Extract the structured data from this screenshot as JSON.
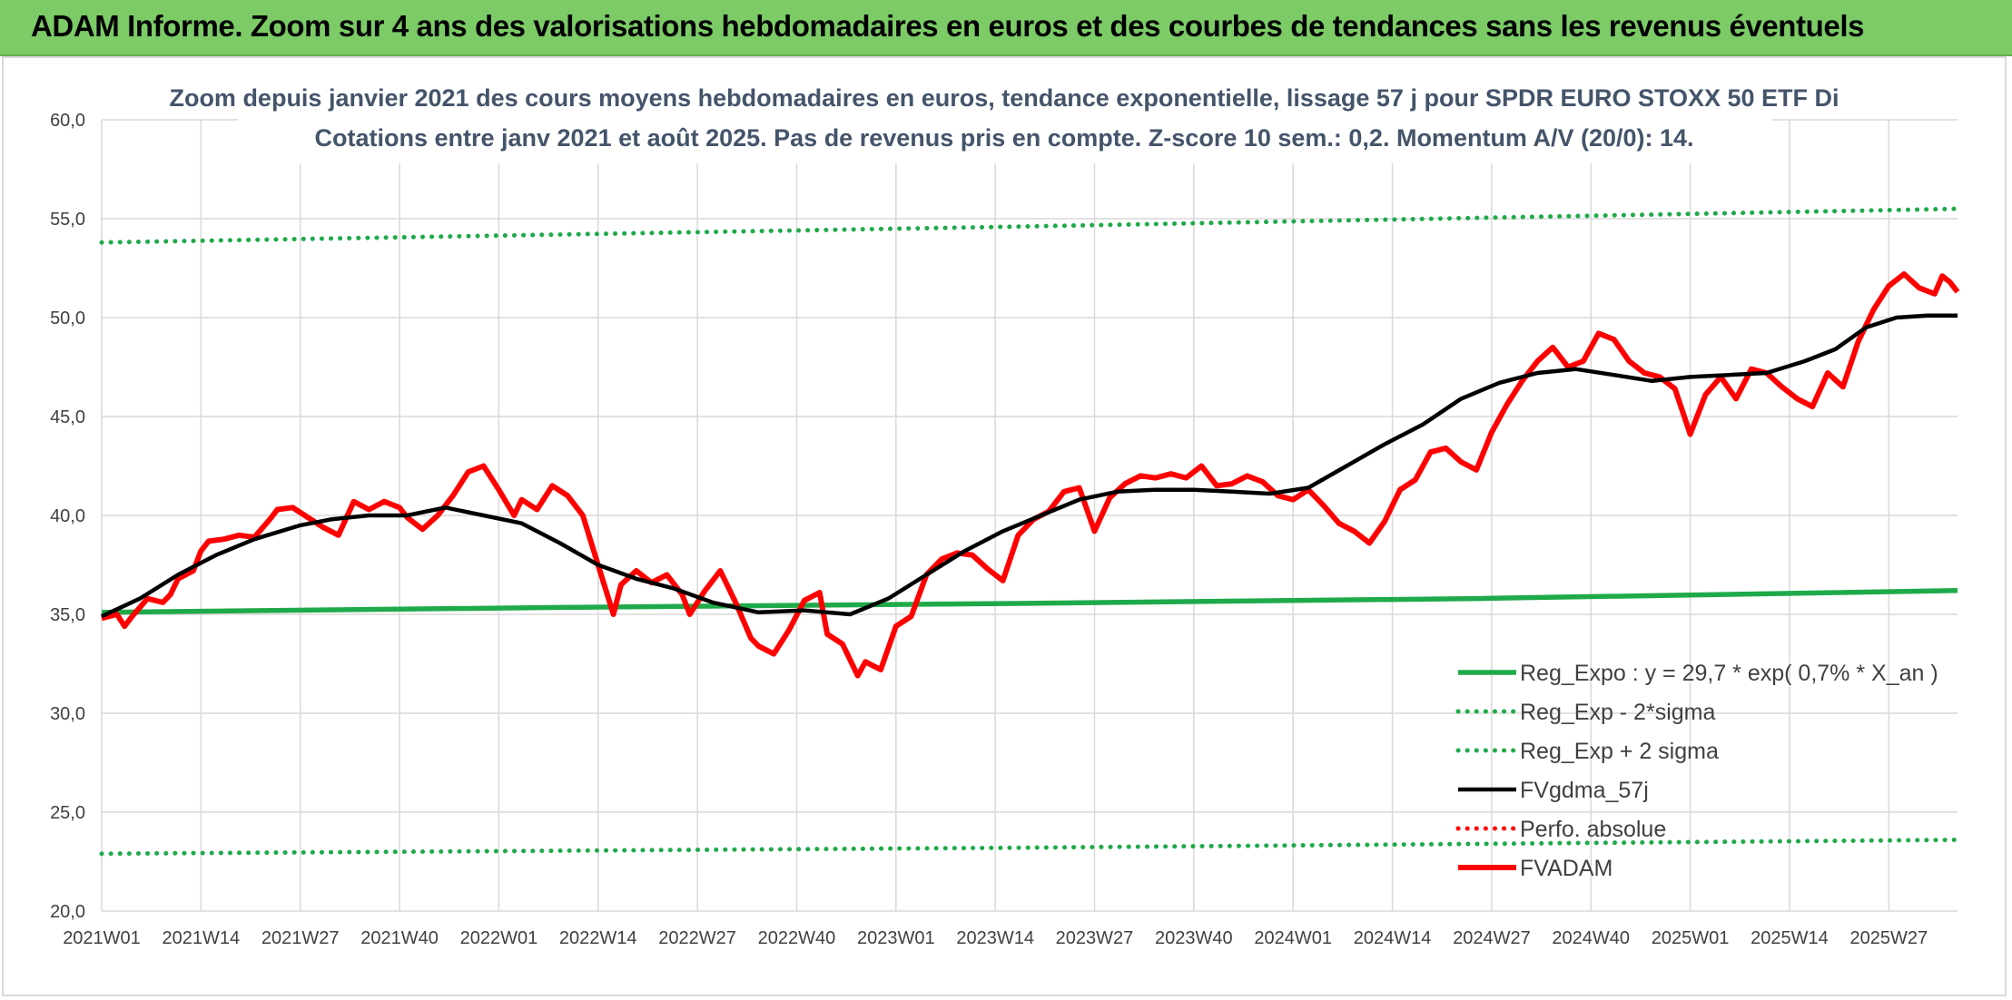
{
  "banner": {
    "title": "ADAM Informe. Zoom sur 4 ans des valorisations hebdomadaires en euros et des courbes de tendances sans les revenus éventuels"
  },
  "colors": {
    "banner_bg": "#7ccb67",
    "green": "#1faa4a",
    "red": "#ff0000",
    "black": "#000000",
    "subtitle": "#44546a",
    "grid": "#d9d9d9"
  },
  "chart_data": {
    "type": "line",
    "title_lines": [
      "Zoom depuis janvier 2021 des cours moyens hebdomadaires en euros, tendance exponentielle, lissage 57 j pour SPDR EURO STOXX 50 ETF Di",
      "Cotations entre janv 2021 et août 2025. Pas de revenus pris en compte. Z-score 10 sem.: 0,2. Momentum A/V (20/0): 14."
    ],
    "xlabel": "",
    "ylabel": "",
    "ylim": [
      20,
      60
    ],
    "yticks": [
      "20,0",
      "25,0",
      "30,0",
      "35,0",
      "40,0",
      "45,0",
      "50,0",
      "55,0",
      "60,0"
    ],
    "x_categories": [
      "2021W01",
      "2021W14",
      "2021W27",
      "2021W40",
      "2022W01",
      "2022W14",
      "2022W27",
      "2022W40",
      "2023W01",
      "2023W14",
      "2023W27",
      "2023W40",
      "2024W01",
      "2024W14",
      "2024W27",
      "2024W40",
      "2025W01",
      "2025W14",
      "2025W27"
    ],
    "grid": true,
    "legend_position": "bottom-right",
    "x_count": 244,
    "series": [
      {
        "name": "Reg_Expo : y = 29,7 * exp( 0,7% *  X_an )",
        "style": "solid-thick",
        "color": "#1faa4a",
        "x": [
          0,
          60,
          120,
          180,
          243
        ],
        "values": [
          35.1,
          35.35,
          35.55,
          35.8,
          36.2
        ]
      },
      {
        "name": "Reg_Exp - 2*sigma",
        "style": "dotted",
        "color": "#1faa4a",
        "x": [
          0,
          120,
          243
        ],
        "values": [
          22.9,
          23.2,
          23.6
        ]
      },
      {
        "name": "Reg_Exp + 2 sigma",
        "style": "dotted",
        "color": "#1faa4a",
        "x": [
          0,
          120,
          243
        ],
        "values": [
          53.8,
          54.6,
          55.5
        ]
      },
      {
        "name": "FVgdma_57j",
        "style": "solid",
        "color": "#000000",
        "x": [
          0,
          5,
          10,
          15,
          20,
          26,
          30,
          35,
          40,
          45,
          50,
          55,
          60,
          65,
          70,
          75,
          80,
          86,
          92,
          98,
          103,
          108,
          113,
          118,
          123,
          128,
          133,
          138,
          143,
          148,
          153,
          158,
          163,
          168,
          173,
          178,
          183,
          188,
          193,
          198,
          203,
          208,
          213,
          218,
          223,
          227,
          231,
          235,
          239,
          243
        ],
        "values": [
          34.9,
          35.8,
          37.0,
          38.0,
          38.8,
          39.5,
          39.8,
          40.0,
          40.0,
          40.4,
          40.0,
          39.6,
          38.6,
          37.5,
          36.8,
          36.3,
          35.6,
          35.1,
          35.2,
          35.0,
          35.8,
          37.0,
          38.2,
          39.2,
          40.0,
          40.8,
          41.2,
          41.3,
          41.3,
          41.2,
          41.1,
          41.4,
          42.5,
          43.6,
          44.6,
          45.9,
          46.7,
          47.2,
          47.4,
          47.1,
          46.8,
          47.0,
          47.1,
          47.2,
          47.8,
          48.4,
          49.5,
          50.0,
          50.1,
          50.1
        ]
      },
      {
        "name": "Perfo. absolue",
        "style": "dotted",
        "color": "#ff0000",
        "x": [],
        "values": []
      },
      {
        "name": "FVADAM",
        "style": "solid-thick",
        "color": "#ff0000",
        "x": [
          0,
          2,
          3,
          4,
          6,
          8,
          9,
          10,
          12,
          13,
          14,
          16,
          18,
          20,
          22,
          23,
          25,
          27,
          29,
          31,
          33,
          35,
          37,
          39,
          40,
          42,
          44,
          46,
          48,
          50,
          52,
          54,
          55,
          57,
          59,
          61,
          63,
          65,
          67,
          68,
          70,
          72,
          74,
          76,
          77,
          79,
          81,
          83,
          85,
          86,
          88,
          90,
          92,
          94,
          95,
          97,
          99,
          100,
          102,
          104,
          106,
          108,
          110,
          112,
          114,
          116,
          118,
          120,
          122,
          124,
          126,
          128,
          130,
          132,
          134,
          136,
          138,
          140,
          142,
          144,
          146,
          148,
          150,
          152,
          154,
          156,
          158,
          160,
          162,
          164,
          166,
          168,
          170,
          172,
          174,
          176,
          178,
          180,
          182,
          184,
          186,
          188,
          190,
          192,
          194,
          196,
          198,
          200,
          202,
          204,
          206,
          208,
          210,
          212,
          214,
          216,
          218,
          220,
          222,
          224,
          226,
          228,
          230,
          232,
          234,
          236,
          238,
          240,
          241,
          242,
          243
        ],
        "values": [
          34.8,
          35.0,
          34.4,
          34.9,
          35.8,
          35.6,
          36.0,
          36.8,
          37.2,
          38.2,
          38.7,
          38.8,
          39.0,
          38.9,
          39.8,
          40.3,
          40.4,
          39.9,
          39.4,
          39.0,
          40.7,
          40.3,
          40.7,
          40.4,
          39.9,
          39.3,
          40.0,
          41.0,
          42.2,
          42.5,
          41.3,
          40.0,
          40.8,
          40.3,
          41.5,
          41.0,
          40.0,
          37.5,
          35.0,
          36.5,
          37.2,
          36.6,
          37.0,
          36.0,
          35.0,
          36.2,
          37.2,
          35.6,
          33.8,
          33.4,
          33.0,
          34.2,
          35.7,
          36.1,
          34.0,
          33.5,
          31.9,
          32.6,
          32.2,
          34.4,
          34.9,
          37.0,
          37.8,
          38.1,
          38.0,
          37.3,
          36.7,
          39.0,
          39.8,
          40.2,
          41.2,
          41.4,
          39.2,
          40.9,
          41.6,
          42.0,
          41.9,
          42.1,
          41.9,
          42.5,
          41.5,
          41.6,
          42.0,
          41.7,
          41.0,
          40.8,
          41.3,
          40.5,
          39.6,
          39.2,
          38.6,
          39.7,
          41.3,
          41.8,
          43.2,
          43.4,
          42.7,
          42.3,
          44.2,
          45.6,
          46.8,
          47.8,
          48.5,
          47.5,
          47.8,
          49.2,
          48.9,
          47.8,
          47.2,
          47.0,
          46.4,
          44.1,
          46.1,
          47.0,
          45.9,
          47.4,
          47.2,
          46.5,
          45.9,
          45.5,
          47.2,
          46.5,
          48.8,
          50.4,
          51.6,
          52.2,
          51.5,
          51.2,
          52.1,
          51.8,
          51.3
        ]
      }
    ]
  }
}
